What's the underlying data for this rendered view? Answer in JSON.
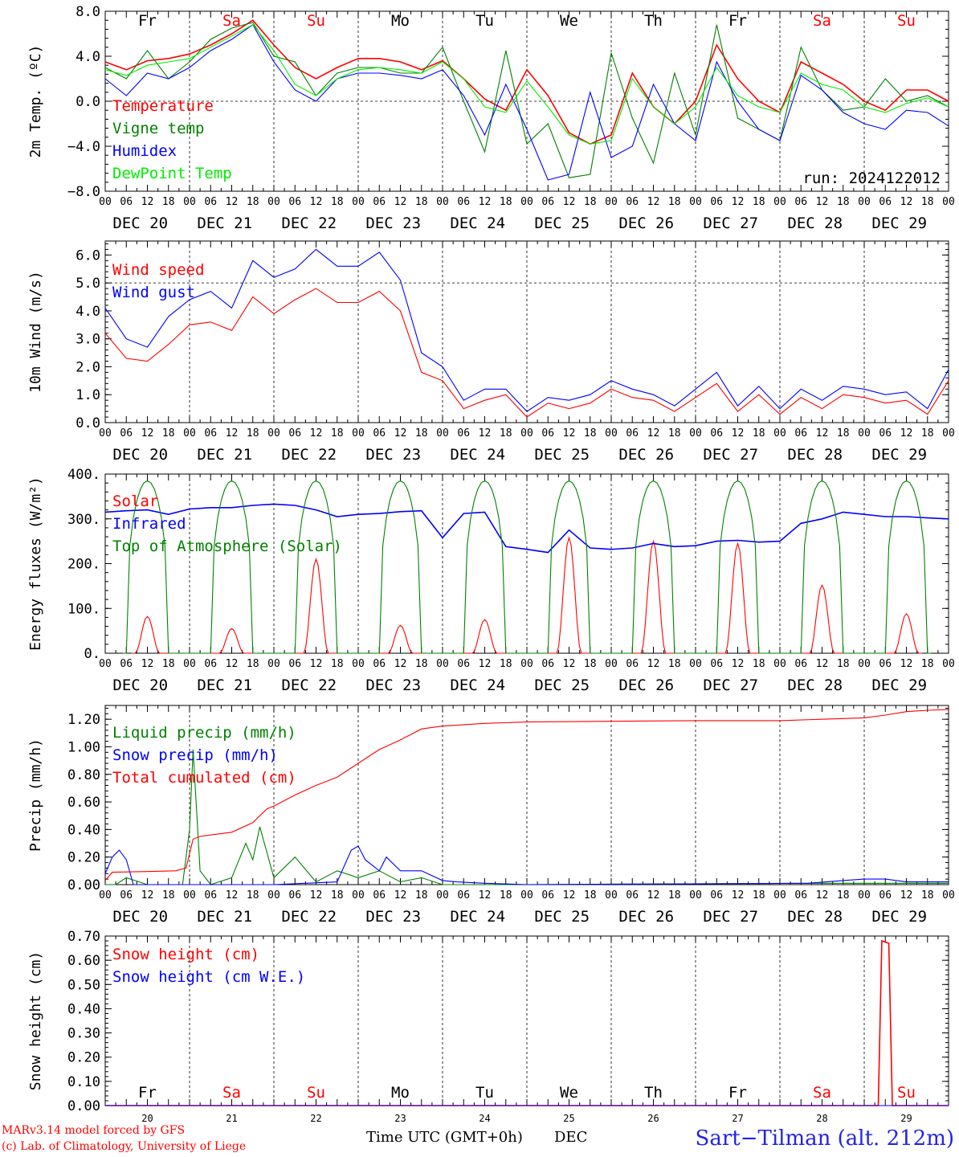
{
  "colors": {
    "red": "#ff0000",
    "green": "#008000",
    "blue": "#0000ff",
    "lightgreen": "#00ee00",
    "grid": "#000000"
  },
  "axis": {
    "hour_ticks": [
      "00",
      "06",
      "12",
      "18"
    ],
    "date_labels": [
      "DEC 20",
      "DEC 21",
      "DEC 22",
      "DEC 23",
      "DEC 24",
      "DEC 25",
      "DEC 26",
      "DEC 27",
      "DEC 28",
      "DEC 29"
    ],
    "weekdays": [
      "Fr",
      "Sa",
      "Su",
      "Mo",
      "Tu",
      "We",
      "Th",
      "Fr",
      "Sa",
      "Su"
    ],
    "weekday_colors": [
      "#000000",
      "#ff0000",
      "#ff0000",
      "#000000",
      "#000000",
      "#000000",
      "#000000",
      "#000000",
      "#ff0000",
      "#ff0000"
    ],
    "bottom_day_numbers": [
      "20",
      "21",
      "22",
      "23",
      "24",
      "25",
      "26",
      "27",
      "28",
      "29"
    ],
    "xlabel": "Time UTC (GMT+0h)",
    "xlabel_suffix": "DEC"
  },
  "footer": {
    "model_line": "MARv3.14 model forced by GFS",
    "credit_line": "(c) Lab. of Climatology, University of Liege",
    "station": "Sart−Tilman (alt. 212m)"
  },
  "chart_data": [
    {
      "type": "line",
      "ylabel": "2m Temp. (ºC)",
      "ylim": [
        -8,
        8
      ],
      "yticks": [
        "8.0",
        "4.0",
        "0.0",
        "−4.0",
        "−8.0"
      ],
      "yticks_values": [
        8,
        4,
        0,
        -4,
        -8
      ],
      "ref_line": 0,
      "annotation": "run: 2024122012",
      "x_unit": "hours since DEC 20 00 UTC",
      "series": [
        {
          "name": "Temperature",
          "color": "#ff0000",
          "x": [
            0,
            6,
            12,
            18,
            24,
            30,
            36,
            42,
            48,
            54,
            60,
            66,
            72,
            78,
            84,
            90,
            96,
            102,
            108,
            114,
            120,
            126,
            132,
            138,
            144,
            150,
            156,
            162,
            168,
            174,
            180,
            186,
            192,
            198,
            204,
            210,
            216,
            222,
            228,
            234,
            240
          ],
          "values": [
            3.5,
            2.8,
            3.6,
            3.8,
            4.2,
            5.0,
            6.0,
            7.2,
            5.0,
            3.0,
            2.0,
            3.0,
            3.8,
            3.8,
            3.5,
            2.8,
            3.6,
            2.0,
            0.2,
            -0.8,
            2.8,
            0.5,
            -2.8,
            -3.8,
            -3.0,
            2.5,
            -0.5,
            -2.0,
            0.0,
            5.0,
            2.0,
            0.0,
            -1.0,
            3.5,
            2.5,
            1.5,
            0.0,
            -0.8,
            1.0,
            1.0,
            0.0
          ]
        },
        {
          "name": "Vigne temp",
          "color": "#008000",
          "x": [
            0,
            6,
            12,
            18,
            24,
            30,
            36,
            42,
            48,
            54,
            60,
            66,
            72,
            78,
            84,
            90,
            96,
            102,
            108,
            114,
            120,
            126,
            132,
            138,
            144,
            150,
            156,
            162,
            168,
            174,
            180,
            186,
            192,
            198,
            204,
            210,
            216,
            222,
            228,
            234,
            240
          ],
          "values": [
            3.0,
            2.0,
            4.5,
            2.0,
            3.5,
            5.5,
            6.5,
            7.0,
            4.0,
            3.5,
            0.5,
            2.5,
            3.0,
            3.0,
            2.5,
            2.5,
            4.8,
            0.0,
            -4.5,
            4.5,
            -3.8,
            -2.0,
            -6.8,
            -6.5,
            4.3,
            -1.5,
            -5.5,
            2.5,
            -3.0,
            6.8,
            -1.5,
            -2.5,
            -3.5,
            4.8,
            1.0,
            -0.8,
            -0.5,
            2.0,
            0.0,
            0.5,
            -0.5
          ]
        },
        {
          "name": "Humidex",
          "color": "#0000ff",
          "x": [
            0,
            6,
            12,
            18,
            24,
            30,
            36,
            42,
            48,
            54,
            60,
            66,
            72,
            78,
            84,
            90,
            96,
            102,
            108,
            114,
            120,
            126,
            132,
            138,
            144,
            150,
            156,
            162,
            168,
            174,
            180,
            186,
            192,
            198,
            204,
            210,
            216,
            222,
            228,
            234,
            240
          ],
          "values": [
            2.0,
            0.5,
            2.5,
            2.0,
            3.0,
            4.5,
            5.5,
            6.8,
            3.5,
            1.0,
            0.0,
            2.0,
            2.5,
            2.5,
            2.3,
            2.0,
            2.8,
            0.5,
            -3.0,
            1.5,
            -2.5,
            -7.0,
            -6.5,
            0.8,
            -5.0,
            -4.0,
            1.5,
            -2.0,
            -3.5,
            3.5,
            0.0,
            -2.5,
            -3.5,
            2.3,
            1.0,
            -1.0,
            -2.0,
            -2.5,
            -0.8,
            -1.0,
            -2.2
          ]
        },
        {
          "name": "DewPoint Temp",
          "color": "#00ee00",
          "x": [
            0,
            6,
            12,
            18,
            24,
            30,
            36,
            42,
            48,
            54,
            60,
            66,
            72,
            78,
            84,
            90,
            96,
            102,
            108,
            114,
            120,
            126,
            132,
            138,
            144,
            150,
            156,
            162,
            168,
            174,
            180,
            186,
            192,
            198,
            204,
            210,
            216,
            222,
            228,
            234,
            240
          ],
          "values": [
            2.8,
            2.3,
            3.2,
            3.5,
            3.8,
            4.8,
            5.8,
            6.8,
            4.5,
            1.5,
            0.5,
            2.0,
            2.8,
            3.0,
            2.8,
            2.5,
            3.5,
            2.0,
            -0.5,
            -1.0,
            1.8,
            -0.5,
            -3.0,
            -3.8,
            -3.5,
            2.0,
            -0.5,
            -2.0,
            -0.5,
            3.0,
            0.5,
            -0.5,
            -1.0,
            2.5,
            1.5,
            1.0,
            -0.5,
            -1.0,
            -0.2,
            0.3,
            -0.5
          ]
        }
      ]
    },
    {
      "type": "line",
      "ylabel": "10m Wind (m/s)",
      "ylim": [
        0,
        6.5
      ],
      "yticks": [
        "0.0",
        "1.0",
        "2.0",
        "3.0",
        "4.0",
        "5.0",
        "6.0"
      ],
      "yticks_values": [
        0,
        1,
        2,
        3,
        4,
        5,
        6
      ],
      "ref_line": 5,
      "x_unit": "hours since DEC 20 00 UTC",
      "series": [
        {
          "name": "Wind speed",
          "color": "#ff0000",
          "x": [
            0,
            6,
            12,
            18,
            24,
            30,
            36,
            42,
            48,
            54,
            60,
            66,
            72,
            78,
            84,
            90,
            96,
            102,
            108,
            114,
            120,
            126,
            132,
            138,
            144,
            150,
            156,
            162,
            168,
            174,
            180,
            186,
            192,
            198,
            204,
            210,
            216,
            222,
            228,
            234,
            240
          ],
          "values": [
            3.2,
            2.3,
            2.2,
            2.8,
            3.5,
            3.6,
            3.3,
            4.5,
            3.9,
            4.4,
            4.8,
            4.3,
            4.3,
            4.7,
            4.0,
            1.8,
            1.5,
            0.5,
            0.8,
            1.0,
            0.2,
            0.7,
            0.5,
            0.7,
            1.2,
            0.9,
            0.8,
            0.4,
            0.9,
            1.4,
            0.4,
            1.0,
            0.3,
            0.9,
            0.5,
            1.0,
            0.9,
            0.7,
            0.8,
            0.3,
            1.5
          ]
        },
        {
          "name": "Wind gust",
          "color": "#0000ff",
          "x": [
            0,
            6,
            12,
            18,
            24,
            30,
            36,
            42,
            48,
            54,
            60,
            66,
            72,
            78,
            84,
            90,
            96,
            102,
            108,
            114,
            120,
            126,
            132,
            138,
            144,
            150,
            156,
            162,
            168,
            174,
            180,
            186,
            192,
            198,
            204,
            210,
            216,
            222,
            228,
            234,
            240
          ],
          "values": [
            4.1,
            3.0,
            2.7,
            3.8,
            4.4,
            4.7,
            4.1,
            5.8,
            5.2,
            5.5,
            6.2,
            5.6,
            5.6,
            6.1,
            5.1,
            2.5,
            2.0,
            0.8,
            1.2,
            1.2,
            0.4,
            0.9,
            0.8,
            1.0,
            1.5,
            1.2,
            1.0,
            0.6,
            1.2,
            1.8,
            0.6,
            1.3,
            0.5,
            1.2,
            0.8,
            1.3,
            1.2,
            1.0,
            1.1,
            0.5,
            1.9
          ]
        }
      ]
    },
    {
      "type": "line",
      "ylabel": "Energy fluxes (W/m²)",
      "ylim": [
        0,
        400
      ],
      "yticks": [
        "0.",
        "100.",
        "200.",
        "300.",
        "400."
      ],
      "yticks_values": [
        0,
        100,
        200,
        300,
        400
      ],
      "x_unit": "hours since DEC 20 00 UTC",
      "series": [
        {
          "name": "Solar",
          "color": "#ff0000",
          "peaks": [
            82,
            55,
            210,
            62,
            75,
            258,
            250,
            245,
            152,
            88
          ]
        },
        {
          "name": "Infrared",
          "color": "#0000ff",
          "x": [
            0,
            6,
            12,
            18,
            24,
            30,
            36,
            42,
            48,
            54,
            60,
            66,
            72,
            78,
            84,
            90,
            96,
            102,
            108,
            114,
            120,
            126,
            132,
            138,
            144,
            150,
            156,
            162,
            168,
            174,
            180,
            186,
            192,
            198,
            204,
            210,
            216,
            222,
            228,
            234,
            240
          ],
          "values": [
            315,
            318,
            320,
            310,
            322,
            325,
            325,
            330,
            333,
            330,
            320,
            305,
            310,
            312,
            316,
            318,
            258,
            312,
            315,
            238,
            232,
            225,
            275,
            235,
            232,
            235,
            245,
            238,
            240,
            250,
            252,
            248,
            250,
            290,
            300,
            315,
            310,
            305,
            305,
            302,
            300
          ]
        },
        {
          "name": "Top of Atmosphere (Solar)",
          "color": "#008000",
          "peaks": [
            385,
            385,
            385,
            385,
            385,
            385,
            385,
            385,
            385,
            385
          ]
        }
      ]
    },
    {
      "type": "line",
      "ylabel": "Precip (mm/h)",
      "ylim": [
        0,
        1.3
      ],
      "yticks": [
        "0.00",
        "0.20",
        "0.40",
        "0.60",
        "0.80",
        "1.00",
        "1.20"
      ],
      "yticks_values": [
        0,
        0.2,
        0.4,
        0.6,
        0.8,
        1.0,
        1.2
      ],
      "x_unit": "hours since DEC 20 00 UTC",
      "series": [
        {
          "name": "Liquid precip (mm/h)",
          "color": "#008000",
          "x": [
            0,
            3,
            6,
            12,
            18,
            22,
            24,
            25,
            27,
            30,
            36,
            40,
            42,
            44,
            48,
            54,
            60,
            66,
            72,
            78,
            84,
            90,
            96,
            120,
            200,
            240
          ],
          "values": [
            0,
            0,
            0.05,
            0,
            0,
            0,
            0.4,
            0.98,
            0.1,
            0,
            0.05,
            0.3,
            0.18,
            0.42,
            0.05,
            0.2,
            0.02,
            0.1,
            0.05,
            0.1,
            0.02,
            0.05,
            0,
            0,
            0.01,
            0.01
          ]
        },
        {
          "name": "Snow precip (mm/h)",
          "color": "#0000ff",
          "x": [
            0,
            2,
            4,
            6,
            8,
            12,
            24,
            48,
            66,
            70,
            72,
            74,
            78,
            80,
            84,
            90,
            96,
            100,
            108,
            120,
            200,
            210,
            216,
            222,
            228,
            234,
            240
          ],
          "values": [
            0.08,
            0.2,
            0.25,
            0.18,
            0,
            0,
            0,
            0,
            0.02,
            0.25,
            0.28,
            0.18,
            0.1,
            0.2,
            0.1,
            0.1,
            0.03,
            0.02,
            0.01,
            0,
            0.01,
            0.03,
            0.04,
            0.04,
            0.02,
            0.02,
            0.02
          ]
        },
        {
          "name": "Total cumulated (cm)",
          "color": "#ff0000",
          "x": [
            0,
            2,
            12,
            20,
            23,
            25,
            27,
            30,
            36,
            42,
            46,
            48,
            54,
            60,
            66,
            72,
            78,
            84,
            90,
            96,
            108,
            120,
            144,
            168,
            192,
            216,
            222,
            228,
            234,
            240
          ],
          "values": [
            0.03,
            0.09,
            0.095,
            0.1,
            0.12,
            0.33,
            0.35,
            0.36,
            0.38,
            0.45,
            0.55,
            0.57,
            0.65,
            0.72,
            0.78,
            0.88,
            0.98,
            1.05,
            1.13,
            1.15,
            1.17,
            1.18,
            1.185,
            1.19,
            1.19,
            1.21,
            1.23,
            1.255,
            1.265,
            1.27
          ]
        }
      ]
    },
    {
      "type": "line",
      "ylabel": "Snow height (cm)",
      "ylim": [
        0,
        0.7
      ],
      "yticks": [
        "0.00",
        "0.10",
        "0.20",
        "0.30",
        "0.40",
        "0.50",
        "0.60",
        "0.70"
      ],
      "yticks_values": [
        0,
        0.1,
        0.2,
        0.3,
        0.4,
        0.5,
        0.6,
        0.7
      ],
      "x_unit": "hours since DEC 20 00 UTC",
      "series": [
        {
          "name": "Snow height (cm)",
          "color": "#ff0000",
          "x": [
            0,
            220,
            221,
            223,
            224,
            240
          ],
          "values": [
            0,
            0,
            0.68,
            0.67,
            0,
            0
          ]
        },
        {
          "name": "Snow height (cm W.E.)",
          "color": "#0000ff",
          "x": [
            0,
            240
          ],
          "values": [
            0,
            0
          ]
        }
      ]
    }
  ]
}
